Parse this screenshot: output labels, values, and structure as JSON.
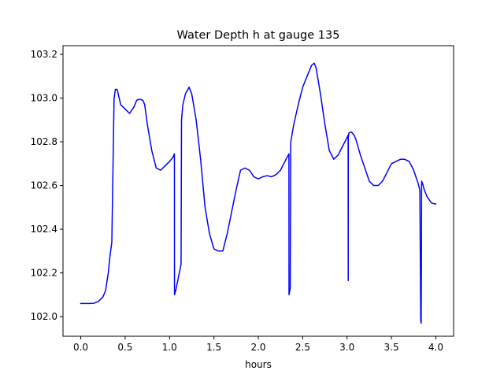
{
  "chart_data": {
    "type": "line",
    "title": "Water Depth h at gauge 135",
    "xlabel": "hours",
    "ylabel": "",
    "xlim": [
      -0.2,
      4.2
    ],
    "ylim": [
      101.91,
      103.24
    ],
    "grid": false,
    "line_color": "#0000ff",
    "x_ticks": [
      0.0,
      0.5,
      1.0,
      1.5,
      2.0,
      2.5,
      3.0,
      3.5,
      4.0
    ],
    "x_tick_labels": [
      "0.0",
      "0.5",
      "1.0",
      "1.5",
      "2.0",
      "2.5",
      "3.0",
      "3.5",
      "4.0"
    ],
    "y_ticks": [
      102.0,
      102.2,
      102.4,
      102.6,
      102.8,
      103.0,
      103.2
    ],
    "y_tick_labels": [
      "102.0",
      "102.2",
      "102.4",
      "102.6",
      "102.8",
      "103.0",
      "103.2"
    ],
    "series": [
      {
        "x": [
          0.0,
          0.1,
          0.15,
          0.2,
          0.25,
          0.28,
          0.31,
          0.33,
          0.35,
          0.375,
          0.376,
          0.39,
          0.41,
          0.45,
          0.5,
          0.55,
          0.6,
          0.63,
          0.66,
          0.7,
          0.72,
          0.75,
          0.8,
          0.85,
          0.9,
          0.95,
          1.0,
          1.04,
          1.055,
          1.056,
          1.07,
          1.1,
          1.13,
          1.135,
          1.15,
          1.18,
          1.22,
          1.25,
          1.3,
          1.35,
          1.4,
          1.45,
          1.5,
          1.55,
          1.6,
          1.65,
          1.7,
          1.75,
          1.8,
          1.85,
          1.9,
          1.95,
          2.0,
          2.05,
          2.1,
          2.15,
          2.2,
          2.25,
          2.3,
          2.345,
          2.346,
          2.36,
          2.365,
          2.366,
          2.4,
          2.45,
          2.5,
          2.55,
          2.6,
          2.63,
          2.65,
          2.7,
          2.75,
          2.8,
          2.85,
          2.9,
          2.95,
          3.0,
          3.012,
          3.013,
          3.014,
          3.02,
          3.05,
          3.08,
          3.1,
          3.15,
          3.2,
          3.25,
          3.3,
          3.35,
          3.4,
          3.45,
          3.5,
          3.55,
          3.6,
          3.65,
          3.7,
          3.75,
          3.8,
          3.82,
          3.83,
          3.835,
          3.84,
          3.85,
          3.87,
          3.9,
          3.95,
          4.0
        ],
        "y": [
          102.06,
          102.06,
          102.061,
          102.07,
          102.09,
          102.12,
          102.2,
          102.28,
          102.34,
          102.99,
          103.0,
          103.04,
          103.04,
          102.97,
          102.95,
          102.93,
          102.96,
          102.99,
          102.995,
          102.99,
          102.97,
          102.88,
          102.76,
          102.68,
          102.67,
          102.69,
          102.71,
          102.73,
          102.745,
          102.1,
          102.12,
          102.18,
          102.24,
          102.9,
          102.97,
          103.02,
          103.05,
          103.02,
          102.9,
          102.72,
          102.5,
          102.38,
          102.31,
          102.3,
          102.3,
          102.38,
          102.48,
          102.58,
          102.67,
          102.68,
          102.67,
          102.64,
          102.63,
          102.64,
          102.645,
          102.64,
          102.65,
          102.67,
          102.71,
          102.745,
          102.1,
          102.13,
          102.75,
          102.8,
          102.88,
          102.97,
          103.05,
          103.1,
          103.15,
          103.16,
          103.14,
          103.02,
          102.88,
          102.76,
          102.72,
          102.74,
          102.78,
          102.82,
          102.83,
          102.165,
          102.82,
          102.84,
          102.845,
          102.83,
          102.81,
          102.74,
          102.68,
          102.62,
          102.6,
          102.6,
          102.62,
          102.66,
          102.7,
          102.71,
          102.72,
          102.72,
          102.71,
          102.67,
          102.61,
          102.58,
          101.98,
          101.97,
          102.62,
          102.61,
          102.58,
          102.55,
          102.52,
          102.515
        ]
      }
    ]
  }
}
